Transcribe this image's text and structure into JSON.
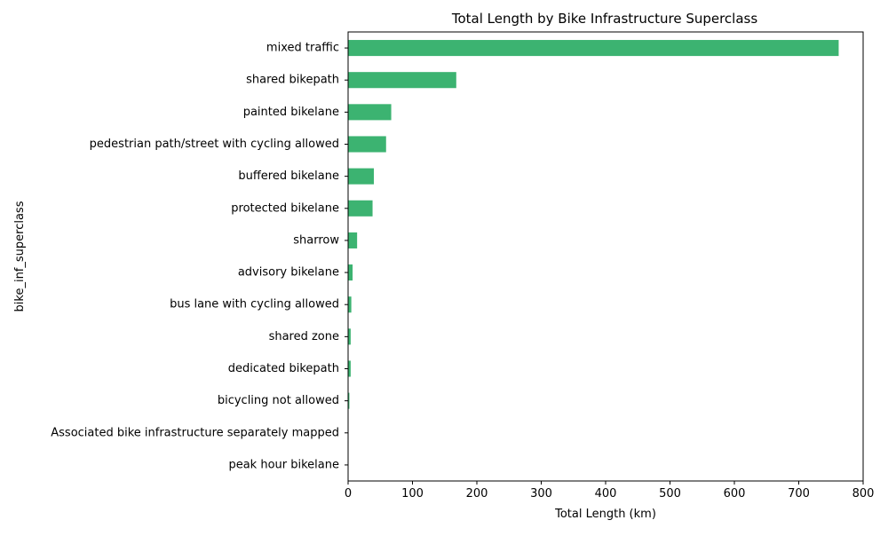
{
  "chart_data": {
    "type": "bar",
    "orientation": "horizontal",
    "title": "Total Length by Bike Infrastructure Superclass",
    "xlabel": "Total Length (km)",
    "ylabel": "bike_inf_superclass",
    "xlim": [
      0,
      800
    ],
    "xticks": [
      0,
      100,
      200,
      300,
      400,
      500,
      600,
      700,
      800
    ],
    "grid": false,
    "bar_color": "#3cb371",
    "categories": [
      "mixed traffic",
      "shared bikepath",
      "painted bikelane",
      "pedestrian path/street with cycling allowed",
      "buffered bikelane",
      "protected bikelane",
      "sharrow",
      "advisory bikelane",
      "bus lane with cycling allowed",
      "shared zone",
      "dedicated bikepath",
      "bicycling not allowed",
      "Associated bike infrastructure separately mapped",
      "peak hour bikelane"
    ],
    "values": [
      762,
      168,
      67,
      59,
      40,
      38,
      14,
      7,
      5,
      4,
      4,
      2,
      0.5,
      0.3
    ]
  }
}
